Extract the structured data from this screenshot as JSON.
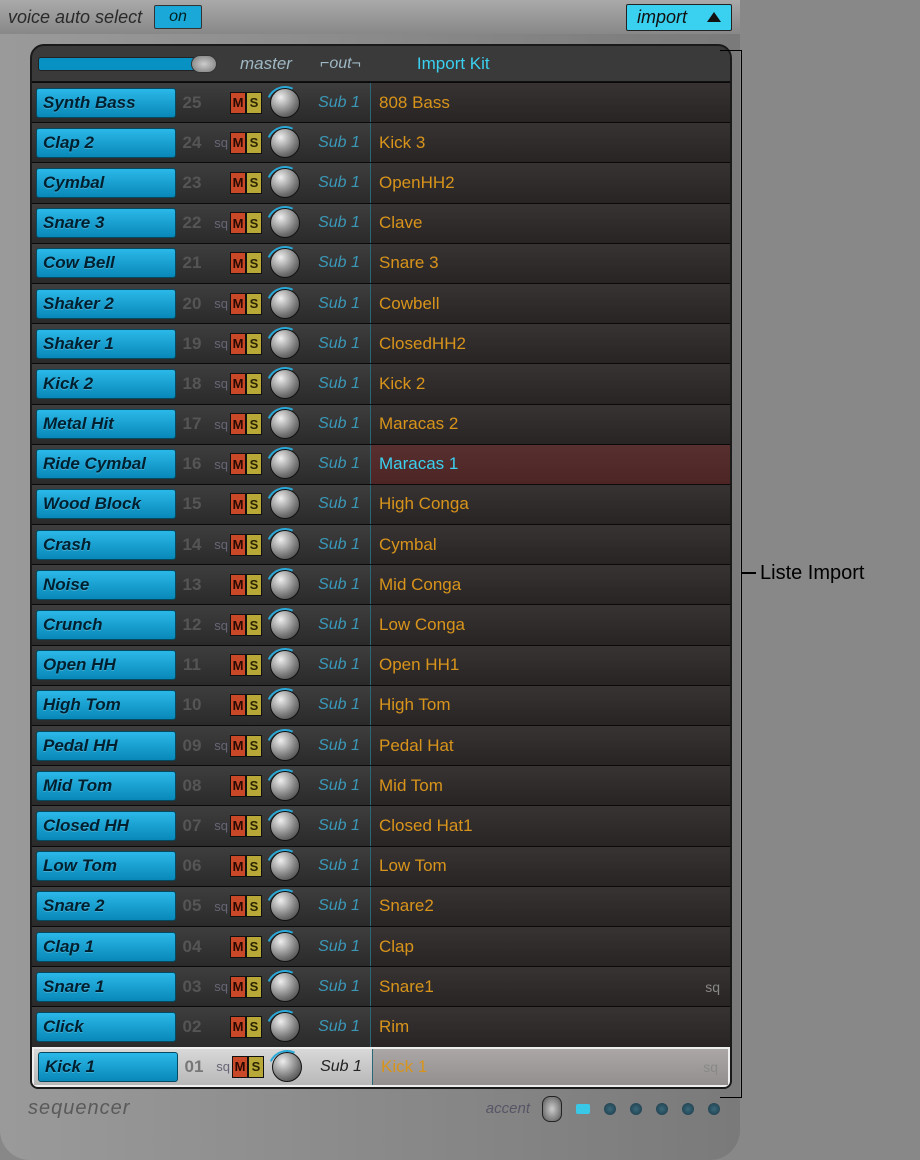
{
  "top": {
    "voice_label": "voice auto select",
    "on_label": "on",
    "import_label": "import"
  },
  "header": {
    "master": "master",
    "out": "⌐out¬",
    "import_kit": "Import Kit"
  },
  "colors": {
    "name_bg": "#1aa8d8",
    "import_text": "#d8941a",
    "accent_cyan": "#3ad0f0",
    "mute_bg": "#c84828",
    "solo_bg": "#b8a838"
  },
  "out_label": "Sub 1",
  "rows": [
    {
      "name": "Synth Bass",
      "num": "25",
      "sq": false,
      "import": "808 Bass",
      "hl": false,
      "isq": false,
      "sel": false
    },
    {
      "name": "Clap 2",
      "num": "24",
      "sq": true,
      "import": "Kick 3",
      "hl": false,
      "isq": false,
      "sel": false
    },
    {
      "name": "Cymbal",
      "num": "23",
      "sq": false,
      "import": "OpenHH2",
      "hl": false,
      "isq": false,
      "sel": false
    },
    {
      "name": "Snare 3",
      "num": "22",
      "sq": true,
      "import": "Clave",
      "hl": false,
      "isq": false,
      "sel": false
    },
    {
      "name": "Cow Bell",
      "num": "21",
      "sq": false,
      "import": "Snare 3",
      "hl": false,
      "isq": false,
      "sel": false
    },
    {
      "name": "Shaker 2",
      "num": "20",
      "sq": true,
      "import": "Cowbell",
      "hl": false,
      "isq": false,
      "sel": false
    },
    {
      "name": "Shaker 1",
      "num": "19",
      "sq": true,
      "import": "ClosedHH2",
      "hl": false,
      "isq": false,
      "sel": false
    },
    {
      "name": "Kick 2",
      "num": "18",
      "sq": true,
      "import": "Kick 2",
      "hl": false,
      "isq": false,
      "sel": false
    },
    {
      "name": "Metal Hit",
      "num": "17",
      "sq": true,
      "import": "Maracas 2",
      "hl": false,
      "isq": false,
      "sel": false
    },
    {
      "name": "Ride Cymbal",
      "num": "16",
      "sq": true,
      "import": "Maracas 1",
      "hl": true,
      "isq": false,
      "sel": false
    },
    {
      "name": "Wood Block",
      "num": "15",
      "sq": false,
      "import": "High Conga",
      "hl": false,
      "isq": false,
      "sel": false
    },
    {
      "name": "Crash",
      "num": "14",
      "sq": true,
      "import": "Cymbal",
      "hl": false,
      "isq": false,
      "sel": false
    },
    {
      "name": "Noise",
      "num": "13",
      "sq": false,
      "import": "Mid Conga",
      "hl": false,
      "isq": false,
      "sel": false
    },
    {
      "name": "Crunch",
      "num": "12",
      "sq": true,
      "import": "Low Conga",
      "hl": false,
      "isq": false,
      "sel": false
    },
    {
      "name": "Open HH",
      "num": "11",
      "sq": false,
      "import": "Open HH1",
      "hl": false,
      "isq": false,
      "sel": false
    },
    {
      "name": "High Tom",
      "num": "10",
      "sq": false,
      "import": "High Tom",
      "hl": false,
      "isq": false,
      "sel": false
    },
    {
      "name": "Pedal HH",
      "num": "09",
      "sq": true,
      "import": "Pedal Hat",
      "hl": false,
      "isq": false,
      "sel": false
    },
    {
      "name": "Mid Tom",
      "num": "08",
      "sq": false,
      "import": "Mid Tom",
      "hl": false,
      "isq": false,
      "sel": false
    },
    {
      "name": "Closed HH",
      "num": "07",
      "sq": true,
      "import": "Closed Hat1",
      "hl": false,
      "isq": false,
      "sel": false
    },
    {
      "name": "Low Tom",
      "num": "06",
      "sq": false,
      "import": "Low Tom",
      "hl": false,
      "isq": false,
      "sel": false
    },
    {
      "name": "Snare 2",
      "num": "05",
      "sq": true,
      "import": "Snare2",
      "hl": false,
      "isq": false,
      "sel": false
    },
    {
      "name": "Clap 1",
      "num": "04",
      "sq": false,
      "import": "Clap",
      "hl": false,
      "isq": false,
      "sel": false
    },
    {
      "name": "Snare 1",
      "num": "03",
      "sq": true,
      "import": "Snare1",
      "hl": false,
      "isq": true,
      "sel": false
    },
    {
      "name": "Click",
      "num": "02",
      "sq": false,
      "import": "Rim",
      "hl": false,
      "isq": false,
      "sel": false
    },
    {
      "name": "Kick 1",
      "num": "01",
      "sq": true,
      "import": "Kick 1",
      "hl": false,
      "isq": true,
      "sel": true
    }
  ],
  "bottom": {
    "sequencer": "sequencer",
    "accent": "accent"
  },
  "callout_label": "Liste Import",
  "ms": {
    "m": "M",
    "s": "S"
  },
  "sq_label": "sq"
}
